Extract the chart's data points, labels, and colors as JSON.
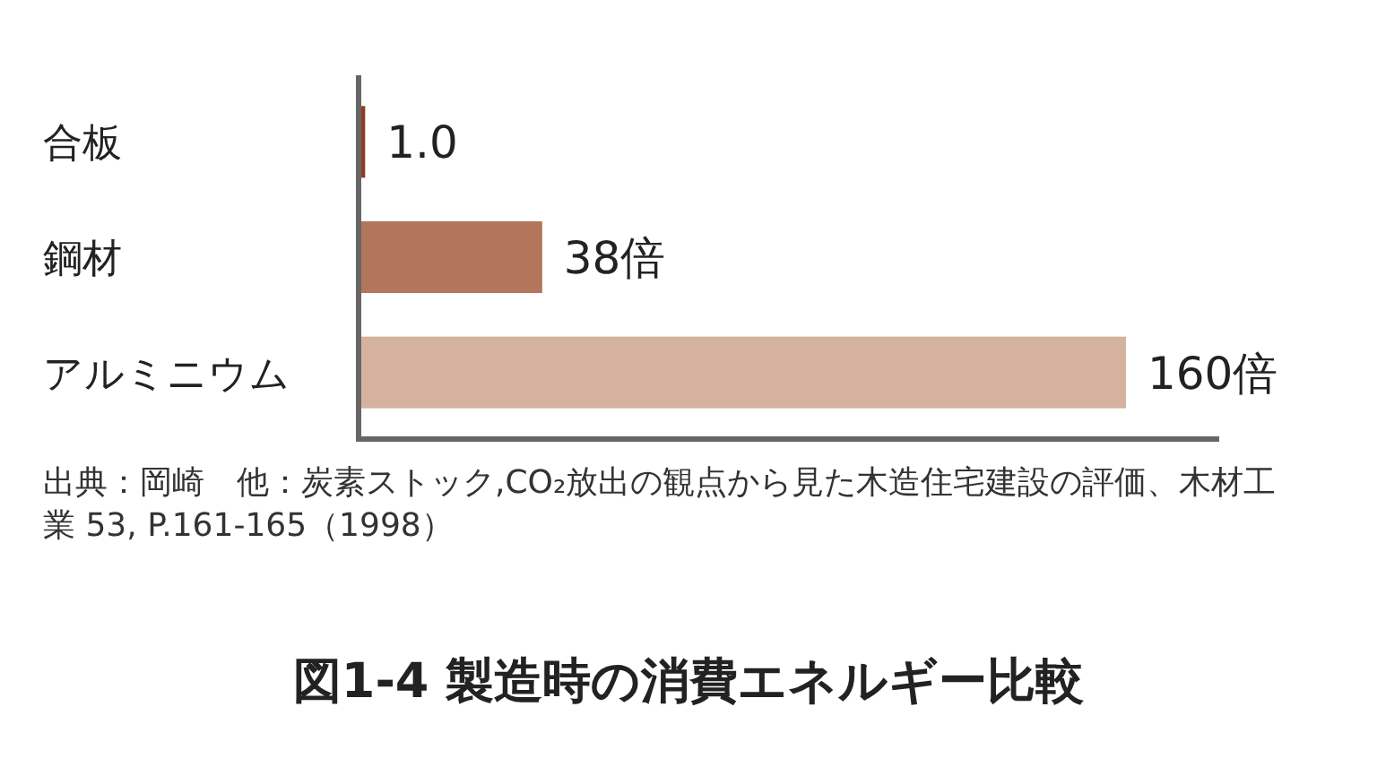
{
  "chart_data": {
    "type": "bar",
    "orientation": "horizontal",
    "title": "図1-4  製造時の消費エネルギー比較",
    "categories": [
      "合板",
      "鋼材",
      "アルミニウム"
    ],
    "values": [
      1.0,
      38,
      160
    ],
    "colors": [
      "#8e3d22",
      "#b2765c",
      "#d5b19f"
    ],
    "value_labels": [
      "1.0",
      "38倍",
      "160倍"
    ],
    "annotations": [
      "出典：岡崎　他：炭素ストック,CO₂放出の観点から見た木造住宅建設の評価、木材工業 53, P.161-165（1998）"
    ]
  }
}
